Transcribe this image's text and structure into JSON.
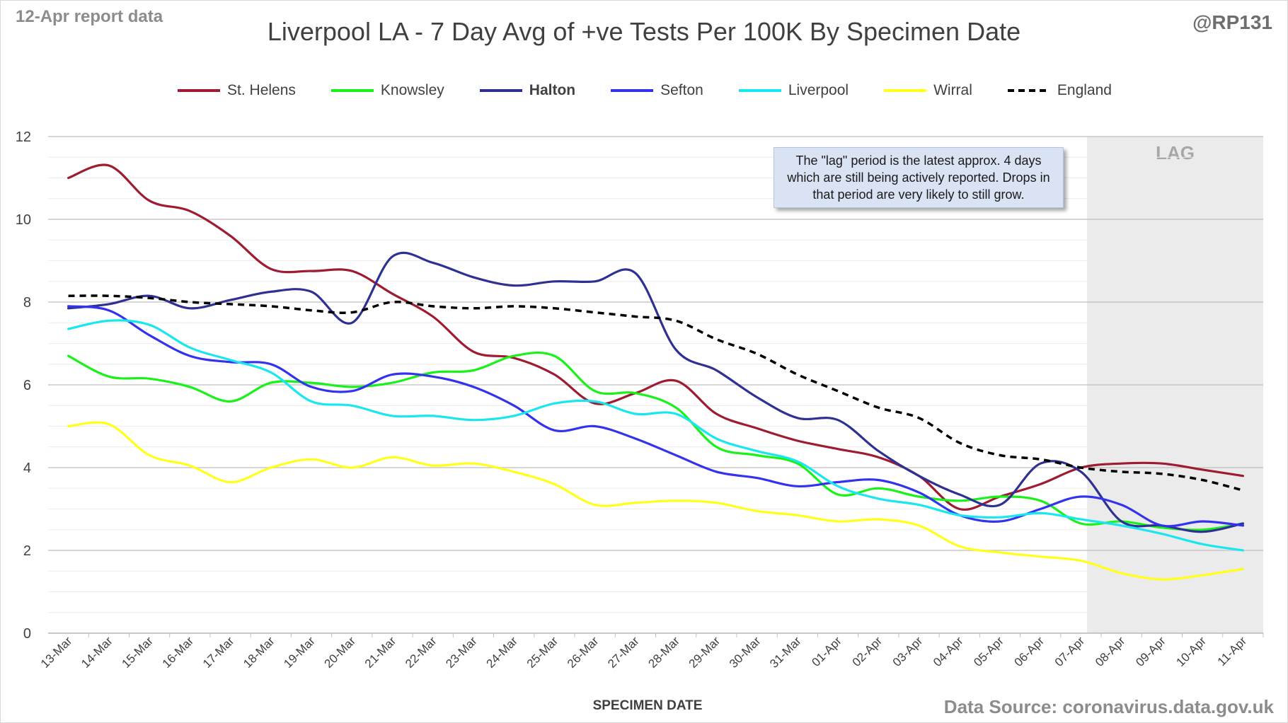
{
  "header": {
    "report_date": "12-Apr report data",
    "title": "Liverpool LA - 7 Day Avg of +ve Tests Per 100K By Specimen Date",
    "author": "@RP131"
  },
  "note": "The \"lag\" period is the latest approx. 4 days which are still being actively reported. Drops in that period are very likely to still grow.",
  "footer": {
    "source": "Data Source: coronavirus.data.gov.uk"
  },
  "chart_data": {
    "type": "line",
    "xlabel": "SPECIMEN DATE",
    "ylabel": "",
    "ylim": [
      0,
      12
    ],
    "yticks": [
      0,
      2,
      4,
      6,
      8,
      10,
      12
    ],
    "grid": "horizontal major and minor",
    "legend_position": "top",
    "lag_label": "LAG",
    "lag_start": "07-Apr",
    "x": [
      "13-Mar",
      "14-Mar",
      "15-Mar",
      "16-Mar",
      "17-Mar",
      "18-Mar",
      "19-Mar",
      "20-Mar",
      "21-Mar",
      "22-Mar",
      "23-Mar",
      "24-Mar",
      "25-Mar",
      "26-Mar",
      "27-Mar",
      "28-Mar",
      "29-Mar",
      "30-Mar",
      "31-Mar",
      "01-Apr",
      "02-Apr",
      "03-Apr",
      "04-Apr",
      "05-Apr",
      "06-Apr",
      "07-Apr",
      "08-Apr",
      "09-Apr",
      "10-Apr",
      "11-Apr"
    ],
    "series": [
      {
        "name": "St. Helens",
        "color": "#9e1b32",
        "bold": false,
        "dashed": false,
        "values": [
          11.0,
          11.3,
          10.45,
          10.2,
          9.6,
          8.8,
          8.75,
          8.75,
          8.2,
          7.65,
          6.8,
          6.65,
          6.25,
          5.55,
          5.8,
          6.1,
          5.3,
          4.95,
          4.65,
          4.45,
          4.25,
          3.8,
          3.0,
          3.3,
          3.6,
          4.0,
          4.1,
          4.1,
          3.95,
          3.8
        ]
      },
      {
        "name": "Knowsley",
        "color": "#19f219",
        "bold": false,
        "dashed": false,
        "values": [
          6.7,
          6.2,
          6.15,
          5.95,
          5.6,
          6.05,
          6.05,
          5.95,
          6.05,
          6.3,
          6.35,
          6.7,
          6.7,
          5.85,
          5.8,
          5.45,
          4.5,
          4.3,
          4.1,
          3.35,
          3.5,
          3.3,
          3.2,
          3.3,
          3.2,
          2.65,
          2.7,
          2.55,
          2.5,
          2.65
        ]
      },
      {
        "name": "Halton",
        "color": "#2e3192",
        "bold": true,
        "dashed": false,
        "values": [
          7.85,
          7.95,
          8.15,
          7.85,
          8.05,
          8.25,
          8.25,
          7.5,
          9.1,
          8.95,
          8.6,
          8.4,
          8.5,
          8.5,
          8.7,
          6.85,
          6.35,
          5.7,
          5.2,
          5.15,
          4.4,
          3.8,
          3.35,
          3.1,
          4.1,
          3.9,
          2.7,
          2.6,
          2.45,
          2.65
        ]
      },
      {
        "name": "Sefton",
        "color": "#3333ee",
        "bold": false,
        "dashed": false,
        "values": [
          7.9,
          7.8,
          7.2,
          6.7,
          6.55,
          6.5,
          5.95,
          5.85,
          6.25,
          6.2,
          5.95,
          5.5,
          4.9,
          5.0,
          4.7,
          4.3,
          3.9,
          3.75,
          3.55,
          3.65,
          3.7,
          3.4,
          2.85,
          2.7,
          3.0,
          3.3,
          3.1,
          2.6,
          2.7,
          2.6
        ]
      },
      {
        "name": "Liverpool",
        "color": "#1ae6f0",
        "bold": false,
        "dashed": false,
        "values": [
          7.35,
          7.55,
          7.45,
          6.9,
          6.6,
          6.3,
          5.6,
          5.5,
          5.25,
          5.25,
          5.15,
          5.25,
          5.55,
          5.6,
          5.3,
          5.3,
          4.7,
          4.4,
          4.15,
          3.55,
          3.25,
          3.1,
          2.85,
          2.8,
          2.9,
          2.75,
          2.6,
          2.4,
          2.15,
          2.0
        ]
      },
      {
        "name": "Wirral",
        "color": "#ffff19",
        "bold": false,
        "dashed": false,
        "values": [
          5.0,
          5.05,
          4.3,
          4.05,
          3.65,
          4.0,
          4.2,
          4.0,
          4.25,
          4.05,
          4.1,
          3.9,
          3.6,
          3.1,
          3.15,
          3.2,
          3.15,
          2.95,
          2.85,
          2.7,
          2.75,
          2.6,
          2.1,
          1.95,
          1.85,
          1.75,
          1.45,
          1.3,
          1.4,
          1.55
        ]
      },
      {
        "name": "England",
        "color": "#000000",
        "bold": false,
        "dashed": true,
        "values": [
          8.15,
          8.15,
          8.1,
          8.0,
          7.95,
          7.9,
          7.8,
          7.75,
          8.0,
          7.9,
          7.85,
          7.9,
          7.85,
          7.75,
          7.65,
          7.55,
          7.1,
          6.75,
          6.25,
          5.85,
          5.45,
          5.2,
          4.6,
          4.3,
          4.2,
          4.0,
          3.9,
          3.85,
          3.7,
          3.45
        ]
      }
    ]
  }
}
